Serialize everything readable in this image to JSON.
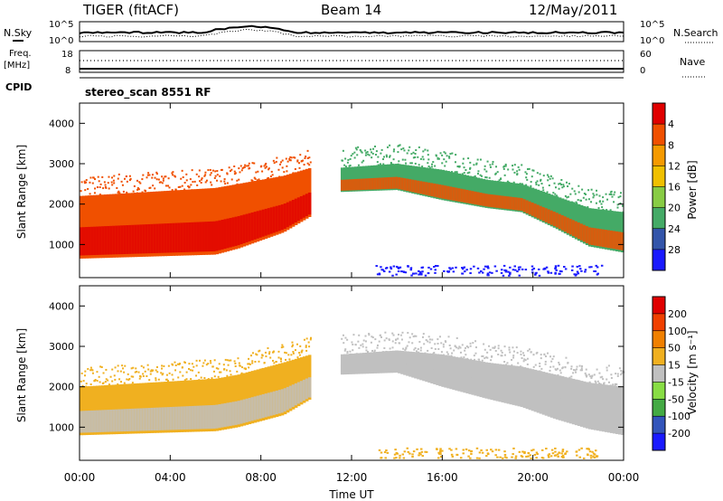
{
  "header": {
    "title": "TIGER (fitACF)",
    "beam": "Beam 14",
    "date": "12/May/2011"
  },
  "summary": {
    "nsky_label": "N.Sky",
    "nsearch_label": "N.Search",
    "nsky_ticks": [
      "10^5",
      "10^0"
    ],
    "nsearch_ticks": [
      "10^5",
      "10^0"
    ],
    "freq_label_1": "Freq.",
    "freq_label_2": "[MHz]",
    "freq_ticks": [
      "18",
      "8"
    ],
    "nave_ticks": [
      "60",
      "0"
    ],
    "nave_label": "Nave",
    "cpid_label": "CPID",
    "cpid_value": "stereo_scan 8551 RF"
  },
  "axes": {
    "xlabel": "Time UT",
    "ylabel_top": "Slant Range [km]",
    "ylabel_bottom": "Slant Range [km]",
    "x_ticks": [
      "00:00",
      "04:00",
      "08:00",
      "12:00",
      "16:00",
      "20:00",
      "00:00"
    ],
    "y_ticks": [
      "1000",
      "2000",
      "3000",
      "4000"
    ]
  },
  "colorbars": {
    "power": {
      "label": "Power [dB]",
      "ticks": [
        "4",
        "8",
        "12",
        "16",
        "20",
        "24",
        "28"
      ],
      "colors": [
        "#1a1aff",
        "#3355aa",
        "#44aa66",
        "#88cc44",
        "#f0c000",
        "#f59a00",
        "#f05000",
        "#e00000"
      ]
    },
    "velocity": {
      "label": "Velocity [m s⁻¹]",
      "ticks": [
        "200",
        "100",
        "50",
        "15",
        "-15",
        "-50",
        "-100",
        "-200"
      ],
      "colors": [
        "#1a1aff",
        "#3355bb",
        "#44aa44",
        "#88dd44",
        "#c0c0c0",
        "#f0b020",
        "#f08000",
        "#f04000",
        "#e00000"
      ]
    }
  },
  "chart_data": [
    {
      "type": "heatmap",
      "title": "Power",
      "x_unit": "hours UT",
      "xlim": [
        0,
        24
      ],
      "y_unit": "km",
      "ylim": [
        180,
        4500
      ],
      "bands": [
        {
          "t": [
            0,
            3,
            6,
            7,
            9,
            10.2
          ],
          "lo": [
            650,
            700,
            750,
            900,
            1300,
            1700
          ],
          "hi": [
            2200,
            2300,
            2400,
            2500,
            2700,
            2900
          ],
          "color": "#f05000",
          "core_color": "#e00000"
        },
        {
          "t": [
            11.5,
            14,
            16,
            18,
            19.5,
            21,
            22.5,
            24
          ],
          "lo": [
            2300,
            2350,
            2100,
            1900,
            1800,
            1400,
            950,
            800
          ],
          "hi": [
            2900,
            3000,
            2850,
            2600,
            2500,
            2200,
            1900,
            1800
          ],
          "color": "#44aa66",
          "core_color": "#f05000"
        }
      ],
      "ground_scatter": {
        "t": [
          13,
          23
        ],
        "lo": 250,
        "hi": 500,
        "color": "#1a1aff"
      }
    },
    {
      "type": "heatmap",
      "title": "Velocity",
      "x_unit": "hours UT",
      "xlim": [
        0,
        24
      ],
      "y_unit": "km",
      "ylim": [
        180,
        4500
      ],
      "bands": [
        {
          "t": [
            0,
            3,
            6,
            7,
            9,
            10.2
          ],
          "lo": [
            800,
            850,
            900,
            1000,
            1300,
            1700
          ],
          "hi": [
            2000,
            2100,
            2200,
            2300,
            2600,
            2800
          ],
          "color": "#f0b020",
          "core_color": "#c0c0c0"
        },
        {
          "t": [
            11.5,
            14,
            16,
            18,
            19.5,
            21,
            22.5,
            24
          ],
          "lo": [
            2300,
            2350,
            2000,
            1700,
            1500,
            1200,
            950,
            800
          ],
          "hi": [
            2800,
            2900,
            2800,
            2600,
            2500,
            2300,
            2100,
            2000
          ],
          "color": "#c0c0c0",
          "core_color": "#c0c0c0"
        }
      ],
      "ground_scatter": {
        "t": [
          13,
          23
        ],
        "lo": 250,
        "hi": 500,
        "color": "#f0b020"
      }
    }
  ]
}
